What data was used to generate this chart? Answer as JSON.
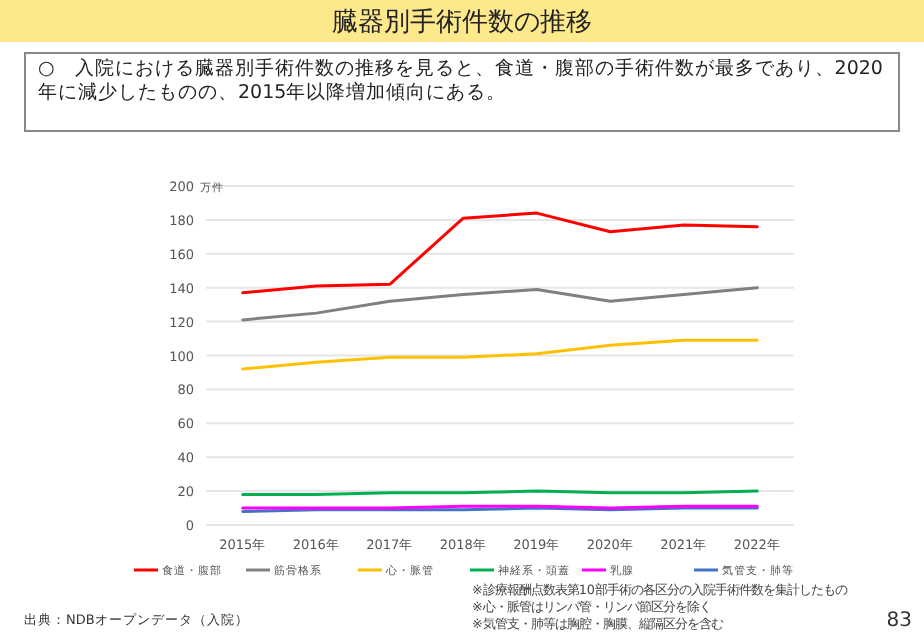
{
  "chart_data": {
    "type": "line",
    "title": "臓器別手術件数の推移",
    "subtitle": "○　入院における臓器別手術件数の推移を見ると、食道・腹部の手術件数が最多であり、2020年に減少したものの、2015年以降増加傾向にある。",
    "ylabel": "万件",
    "categories": [
      "2015年",
      "2016年",
      "2017年",
      "2018年",
      "2019年",
      "2020年",
      "2021年",
      "2022年"
    ],
    "series": [
      {
        "name": "食道・腹部",
        "color": "#ff0000",
        "values": [
          137,
          141,
          142,
          181,
          184,
          173,
          177,
          176
        ]
      },
      {
        "name": "筋骨格系",
        "color": "#808080",
        "values": [
          121,
          125,
          132,
          136,
          139,
          132,
          136,
          140
        ]
      },
      {
        "name": "心・脈管",
        "color": "#ffc000",
        "values": [
          92,
          96,
          99,
          99,
          101,
          106,
          109,
          109
        ]
      },
      {
        "name": "神経系・頭蓋",
        "color": "#00b050",
        "values": [
          18,
          18,
          19,
          19,
          20,
          19,
          19,
          20
        ]
      },
      {
        "name": "乳腺",
        "color": "#ff00ff",
        "values": [
          10,
          10,
          10,
          11,
          11,
          10,
          11,
          11
        ]
      },
      {
        "name": "気管支・肺等",
        "color": "#4472c4",
        "values": [
          8,
          9,
          9,
          9,
          10,
          9,
          10,
          10
        ]
      }
    ],
    "ylim": [
      0,
      200
    ],
    "yticks": [
      0,
      20,
      40,
      60,
      80,
      100,
      120,
      140,
      160,
      180,
      200
    ],
    "grid": "y",
    "legend": "bottom",
    "marker": "none",
    "line_style": "solid",
    "annotations": [
      "※診療報酬点数表第10部手術の各区分の入院手術件数を集計したもの",
      "※心・脈管はリンパ管・リンパ節区分を除く",
      "※気管支・肺等は胸腔・胸膜、縦隔区分を含む",
      "出典：NDBオープンデータ（入院）",
      "83"
    ]
  }
}
